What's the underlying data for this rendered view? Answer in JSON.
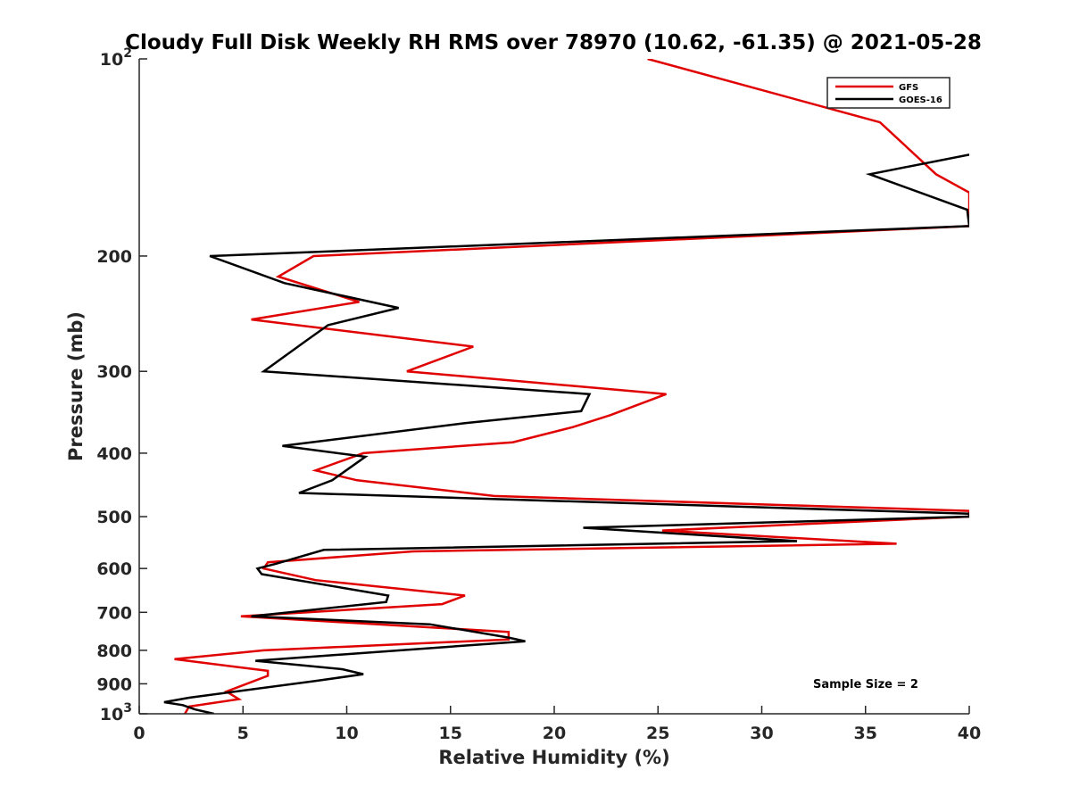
{
  "chart_data": {
    "type": "line",
    "title": "Cloudy Full Disk Weekly RH RMS over 78970 (10.62, -61.35) @ 2021-05-28",
    "xlabel": "Relative Humidity (%)",
    "ylabel": "Pressure (mb)",
    "xlim": [
      0,
      40
    ],
    "ylim": [
      100,
      1000
    ],
    "yscale": "log",
    "y_reversed": true,
    "grid": false,
    "legend_position": "top-right",
    "x_ticks": [
      {
        "value": 0,
        "label": "0"
      },
      {
        "value": 5,
        "label": "5"
      },
      {
        "value": 10,
        "label": "10"
      },
      {
        "value": 15,
        "label": "15"
      },
      {
        "value": 20,
        "label": "20"
      },
      {
        "value": 25,
        "label": "25"
      },
      {
        "value": 30,
        "label": "30"
      },
      {
        "value": 35,
        "label": "35"
      },
      {
        "value": 40,
        "label": "40"
      }
    ],
    "y_ticks": [
      {
        "value": 100,
        "base": "10",
        "exp": "2"
      },
      {
        "value": 200,
        "base": "200",
        "exp": ""
      },
      {
        "value": 300,
        "base": "300",
        "exp": ""
      },
      {
        "value": 400,
        "base": "400",
        "exp": ""
      },
      {
        "value": 500,
        "base": "500",
        "exp": ""
      },
      {
        "value": 600,
        "base": "600",
        "exp": ""
      },
      {
        "value": 700,
        "base": "700",
        "exp": ""
      },
      {
        "value": 800,
        "base": "800",
        "exp": ""
      },
      {
        "value": 900,
        "base": "900",
        "exp": ""
      },
      {
        "value": 1000,
        "base": "10",
        "exp": "3"
      }
    ],
    "series": [
      {
        "name": "GFS",
        "color": "#e00000",
        "points": [
          [
            24.5,
            100
          ],
          [
            35.7,
            125
          ],
          [
            38.4,
            150
          ],
          [
            40.0,
            160
          ],
          [
            40.0,
            180
          ],
          [
            8.4,
            200
          ],
          [
            6.7,
            215
          ],
          [
            10.6,
            235
          ],
          [
            5.4,
            250
          ],
          [
            16.1,
            275
          ],
          [
            12.9,
            300
          ],
          [
            25.4,
            325
          ],
          [
            22.7,
            350
          ],
          [
            20.9,
            365
          ],
          [
            18.0,
            385
          ],
          [
            10.8,
            400
          ],
          [
            8.5,
            425
          ],
          [
            10.5,
            440
          ],
          [
            17.1,
            465
          ],
          [
            40.0,
            490
          ],
          [
            40.0,
            500
          ],
          [
            25.2,
            525
          ],
          [
            36.5,
            550
          ],
          [
            13.2,
            565
          ],
          [
            6.2,
            587
          ],
          [
            6.0,
            600
          ],
          [
            8.5,
            625
          ],
          [
            15.7,
            660
          ],
          [
            14.6,
            680
          ],
          [
            4.9,
            710
          ],
          [
            17.8,
            750
          ],
          [
            17.8,
            770
          ],
          [
            6.0,
            800
          ],
          [
            1.7,
            825
          ],
          [
            6.2,
            860
          ],
          [
            6.2,
            875
          ],
          [
            4.2,
            925
          ],
          [
            4.8,
            950
          ],
          [
            2.4,
            975
          ],
          [
            2.2,
            1000
          ]
        ]
      },
      {
        "name": "GOES-16",
        "color": "#000000",
        "points": [
          [
            40.0,
            140
          ],
          [
            35.2,
            150
          ],
          [
            39.9,
            170
          ],
          [
            40.0,
            180
          ],
          [
            3.4,
            200
          ],
          [
            7.0,
            220
          ],
          [
            12.5,
            240
          ],
          [
            9.1,
            255
          ],
          [
            8.0,
            270
          ],
          [
            6.0,
            300
          ],
          [
            21.7,
            325
          ],
          [
            21.3,
            345
          ],
          [
            15.7,
            360
          ],
          [
            6.9,
            390
          ],
          [
            10.9,
            405
          ],
          [
            9.3,
            440
          ],
          [
            7.7,
            460
          ],
          [
            40.0,
            495
          ],
          [
            40.0,
            500
          ],
          [
            21.4,
            520
          ],
          [
            31.7,
            545
          ],
          [
            8.9,
            562
          ],
          [
            6.6,
            590
          ],
          [
            5.7,
            600
          ],
          [
            5.9,
            612
          ],
          [
            12.0,
            660
          ],
          [
            11.9,
            675
          ],
          [
            5.4,
            710
          ],
          [
            14.0,
            730
          ],
          [
            17.8,
            765
          ],
          [
            18.6,
            775
          ],
          [
            5.6,
            830
          ],
          [
            9.8,
            855
          ],
          [
            10.8,
            870
          ],
          [
            8.6,
            890
          ],
          [
            2.4,
            945
          ],
          [
            1.2,
            960
          ],
          [
            2.1,
            970
          ],
          [
            2.7,
            985
          ],
          [
            3.6,
            1000
          ]
        ]
      }
    ],
    "legend": [
      {
        "label": "GFS",
        "color": "#e00000"
      },
      {
        "label": "GOES-16",
        "color": "#000000"
      }
    ],
    "annotation": "Sample Size = 2"
  }
}
